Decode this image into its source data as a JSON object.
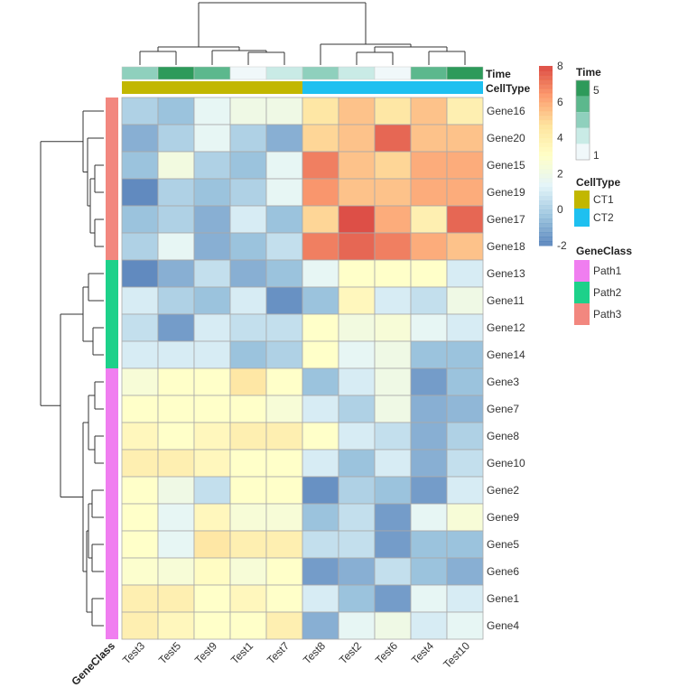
{
  "chart_data": {
    "type": "heatmap",
    "columns": [
      "Test3",
      "Test5",
      "Test9",
      "Test1",
      "Test7",
      "Test8",
      "Test2",
      "Test6",
      "Test4",
      "Test10"
    ],
    "rows": [
      "Gene16",
      "Gene20",
      "Gene15",
      "Gene19",
      "Gene17",
      "Gene18",
      "Gene13",
      "Gene11",
      "Gene12",
      "Gene14",
      "Gene3",
      "Gene7",
      "Gene8",
      "Gene10",
      "Gene2",
      "Gene9",
      "Gene5",
      "Gene6",
      "Gene1",
      "Gene4"
    ],
    "values": [
      [
        0,
        -0.5,
        1.5,
        2,
        2,
        4.5,
        5.5,
        4.5,
        5.5,
        4
      ],
      [
        -1,
        0,
        1.5,
        0,
        -1,
        5,
        5.5,
        7.5,
        5.5,
        5.5
      ],
      [
        -0.5,
        2.2,
        0,
        -0.5,
        1.5,
        7,
        5.5,
        5,
        6,
        6
      ],
      [
        -2,
        0,
        -0.5,
        0,
        1.5,
        6.5,
        5.5,
        5.5,
        6,
        6
      ],
      [
        -0.5,
        0,
        -1,
        1,
        -0.5,
        5,
        8,
        6,
        4,
        7.5
      ],
      [
        0,
        1.5,
        -1,
        -0.5,
        0.5,
        7,
        7.5,
        7,
        6,
        5.5
      ],
      [
        -2,
        -1,
        0.5,
        -1,
        -0.5,
        1.5,
        3,
        3,
        3,
        1
      ],
      [
        1,
        0,
        -0.5,
        1,
        -1.8,
        -0.5,
        3.5,
        1,
        0.5,
        2
      ],
      [
        0.5,
        -1.5,
        1,
        0.5,
        0.5,
        3,
        2.2,
        2.5,
        1.5,
        1
      ],
      [
        1,
        1,
        1,
        -0.5,
        0,
        3,
        1.5,
        2,
        -0.5,
        -0.5
      ],
      [
        2.5,
        3,
        3,
        4.5,
        3,
        -0.5,
        1,
        2,
        -1.5,
        -0.5
      ],
      [
        3,
        3,
        3,
        3,
        2.5,
        1,
        0,
        2,
        -1,
        -0.8
      ],
      [
        3.5,
        3,
        3.5,
        4,
        4,
        3,
        1,
        0.5,
        -1,
        0
      ],
      [
        4,
        4,
        3.5,
        3,
        3,
        1,
        -0.5,
        1,
        -1,
        0.5
      ],
      [
        3,
        2,
        0.5,
        3,
        3,
        -1.8,
        0,
        -0.5,
        -1.5,
        1
      ],
      [
        3,
        1.5,
        3.5,
        2.5,
        2.5,
        -0.5,
        0.5,
        -1.5,
        1.5,
        2.5
      ],
      [
        3,
        1.5,
        4.5,
        4,
        4,
        0.5,
        0.5,
        -1.5,
        -0.5,
        -0.5
      ],
      [
        2.8,
        2.5,
        3.2,
        2.5,
        3,
        -1.5,
        -1,
        0.5,
        -0.5,
        -1
      ],
      [
        4,
        4,
        3,
        3.5,
        3,
        1,
        -0.5,
        -1.5,
        1.5,
        1
      ],
      [
        4,
        3.5,
        3,
        3,
        4,
        -1,
        1.5,
        2,
        1,
        1.5
      ]
    ],
    "color_scale": {
      "range": [
        -2,
        8
      ],
      "ticks": [
        "8",
        "6",
        "4",
        "2",
        "0",
        "-2"
      ],
      "tick_values": [
        8,
        6,
        4,
        2,
        0,
        -2
      ],
      "colors": [
        "#4575b4",
        "#91bfdb",
        "#e0f3f8",
        "#ffffbf",
        "#fee090",
        "#fc8d59",
        "#d73027"
      ]
    },
    "column_annotations": {
      "Time": {
        "label": "Time",
        "values": [
          3,
          5,
          4,
          1,
          2,
          3,
          2,
          1,
          4,
          5
        ]
      },
      "CellType": {
        "label": "CellType",
        "values": [
          "CT1",
          "CT1",
          "CT1",
          "CT1",
          "CT1",
          "CT2",
          "CT2",
          "CT2",
          "CT2",
          "CT2"
        ]
      }
    },
    "row_annotation": {
      "label": "GeneClass",
      "values": [
        "Path3",
        "Path3",
        "Path3",
        "Path3",
        "Path3",
        "Path3",
        "Path2",
        "Path2",
        "Path2",
        "Path2",
        "Path1",
        "Path1",
        "Path1",
        "Path1",
        "Path1",
        "Path1",
        "Path1",
        "Path1",
        "Path1",
        "Path1"
      ]
    },
    "legends": {
      "time": {
        "title": "Time",
        "tick_high": "5",
        "tick_low": "1",
        "colors": [
          "#2d9a5a",
          "#5cb88d",
          "#8fd0bd",
          "#c9ebe6",
          "#f0f8fa"
        ]
      },
      "celltype": {
        "title": "CellType",
        "items": [
          {
            "label": "CT1",
            "color": "#c2b700"
          },
          {
            "label": "CT2",
            "color": "#1ec0f0"
          }
        ]
      },
      "geneclass": {
        "title": "GeneClass",
        "items": [
          {
            "label": "Path1",
            "color": "#f07ef0"
          },
          {
            "label": "Path2",
            "color": "#1dd18a"
          },
          {
            "label": "Path3",
            "color": "#f2877f"
          }
        ]
      }
    },
    "grid": true
  }
}
